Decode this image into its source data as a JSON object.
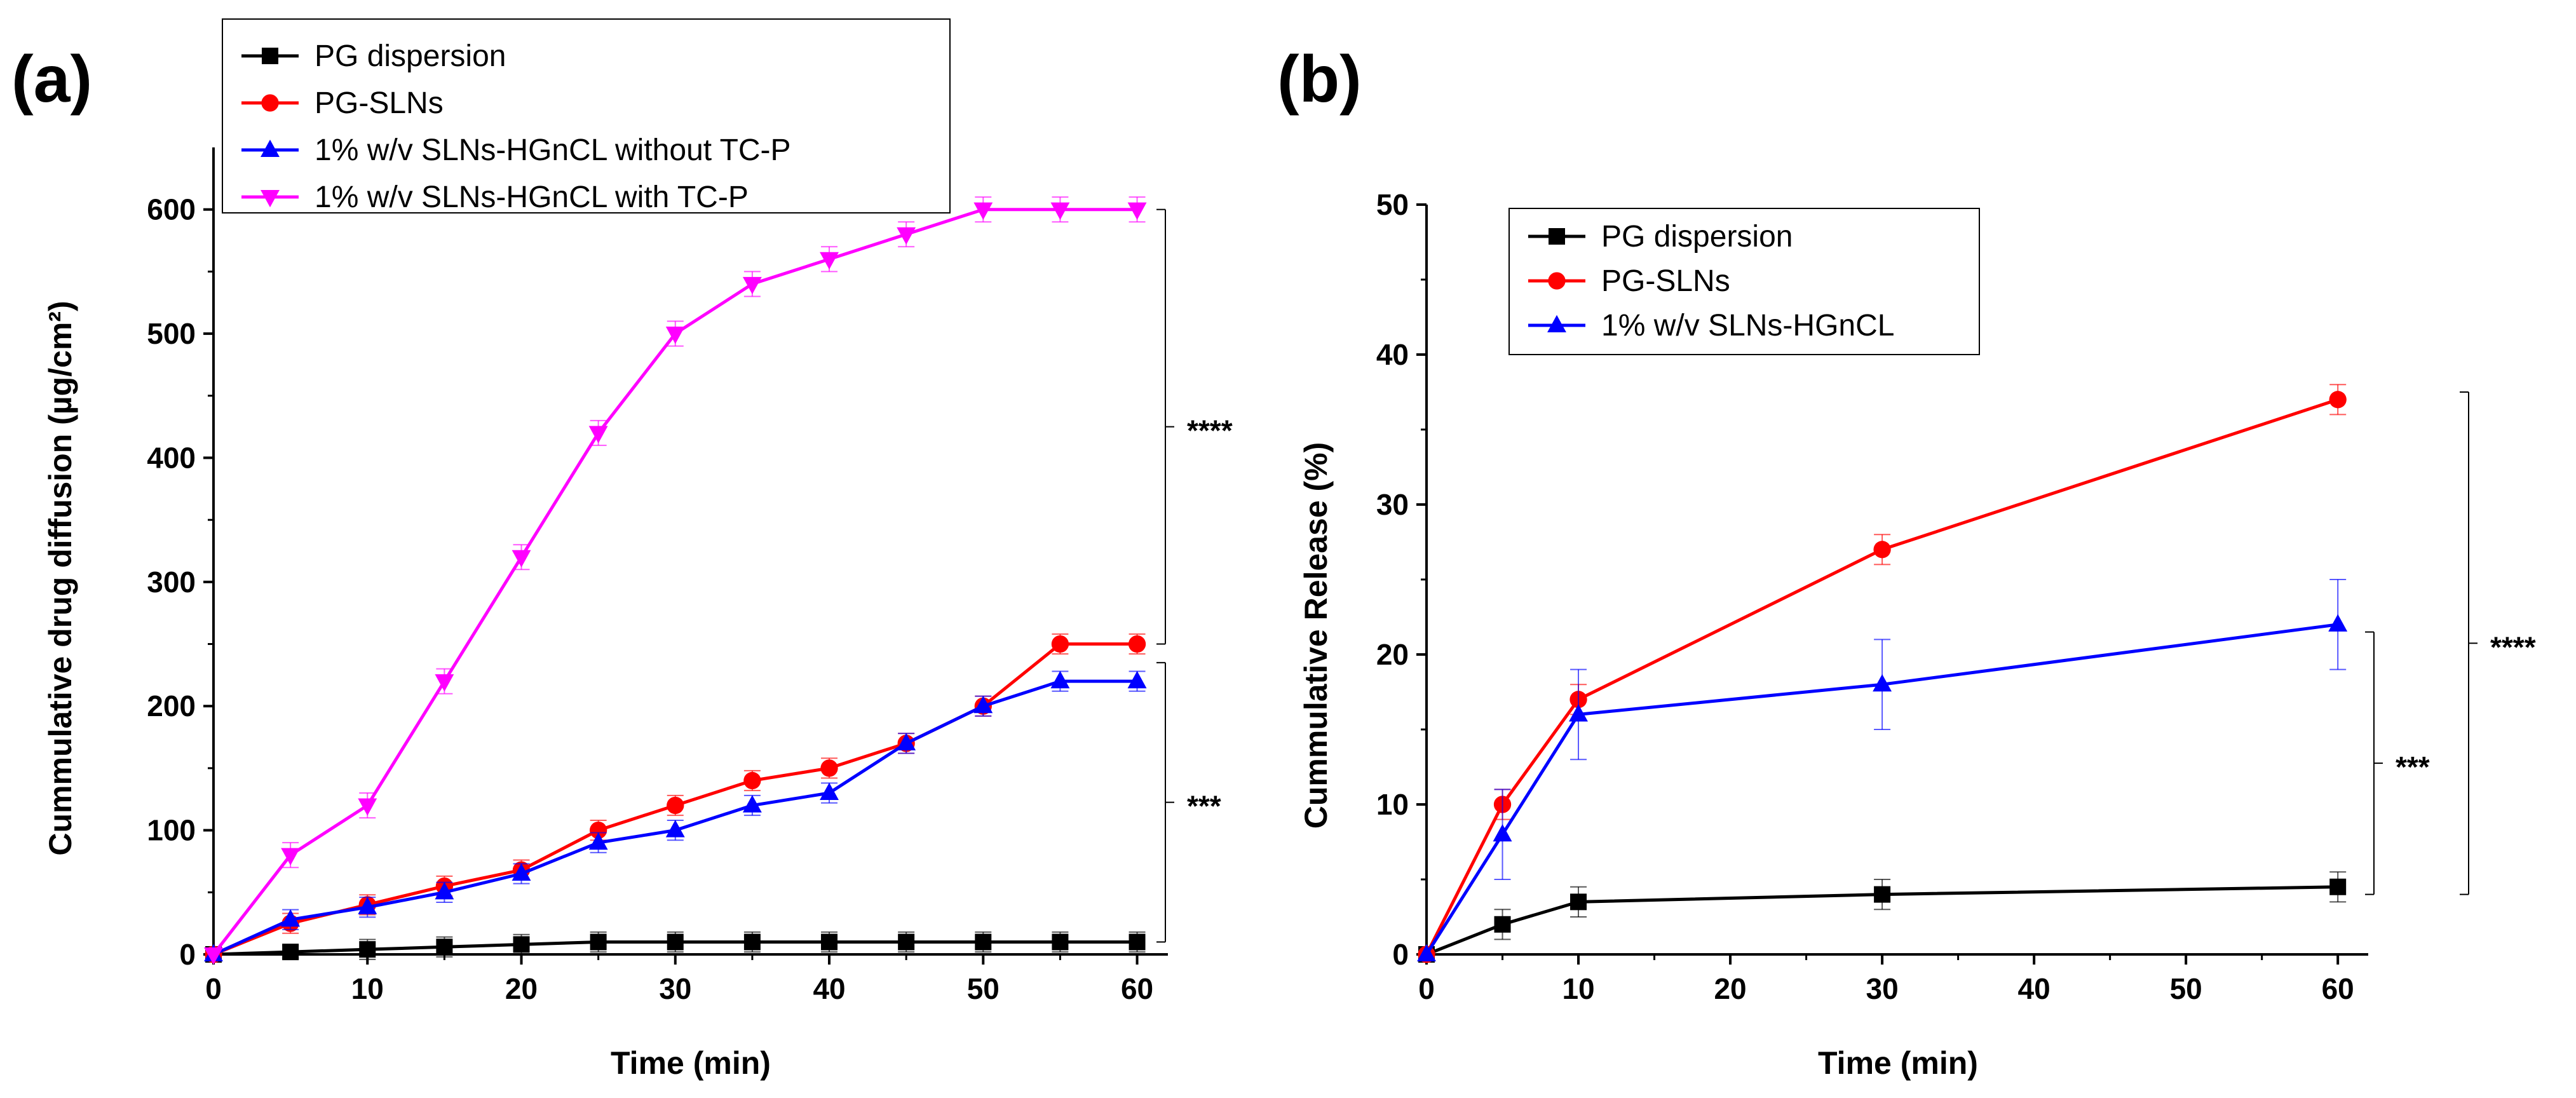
{
  "chart_data": [
    {
      "panel": "(a)",
      "type": "line",
      "xlabel": "Time (min)",
      "ylabel": "Cummulative drug diffusion (µg/cm²)",
      "xlim": [
        0,
        62
      ],
      "ylim": [
        0,
        650
      ],
      "xticks": [
        0,
        10,
        20,
        30,
        40,
        50,
        60
      ],
      "yticks": [
        0,
        100,
        200,
        300,
        400,
        500,
        600
      ],
      "legend_position": "top",
      "series": [
        {
          "name": "PG dispersion",
          "color": "#000000",
          "marker": "square",
          "x": [
            0,
            5,
            10,
            15,
            20,
            25,
            30,
            35,
            40,
            45,
            50,
            55,
            60
          ],
          "y": [
            0,
            2,
            4,
            6,
            8,
            10,
            10,
            10,
            10,
            10,
            10,
            10,
            10
          ],
          "err": [
            0,
            5,
            8,
            8,
            8,
            8,
            8,
            8,
            8,
            8,
            8,
            8,
            8
          ]
        },
        {
          "name": "PG-SLNs",
          "color": "#ff0000",
          "marker": "circle",
          "x": [
            0,
            5,
            10,
            15,
            20,
            25,
            30,
            35,
            40,
            45,
            50,
            55,
            60
          ],
          "y": [
            0,
            25,
            40,
            55,
            68,
            100,
            120,
            140,
            150,
            170,
            200,
            250,
            250
          ],
          "err": [
            0,
            8,
            8,
            8,
            8,
            8,
            8,
            8,
            8,
            8,
            8,
            8,
            8
          ]
        },
        {
          "name": "1% w/v SLNs-HGnCL without TC-P",
          "color": "#0000ff",
          "marker": "triangle-up",
          "x": [
            0,
            5,
            10,
            15,
            20,
            25,
            30,
            35,
            40,
            45,
            50,
            55,
            60
          ],
          "y": [
            0,
            28,
            38,
            50,
            65,
            90,
            100,
            120,
            130,
            170,
            200,
            220,
            220
          ],
          "err": [
            0,
            8,
            8,
            8,
            8,
            8,
            8,
            8,
            8,
            8,
            8,
            8,
            8
          ]
        },
        {
          "name": "1% w/v SLNs-HGnCL with TC-P",
          "color": "#ff00ff",
          "marker": "triangle-down",
          "x": [
            0,
            5,
            10,
            15,
            20,
            25,
            30,
            35,
            40,
            45,
            50,
            55,
            60
          ],
          "y": [
            0,
            80,
            120,
            220,
            320,
            420,
            500,
            540,
            560,
            580,
            600,
            600,
            600
          ],
          "err": [
            0,
            10,
            10,
            10,
            10,
            10,
            10,
            10,
            10,
            10,
            10,
            10,
            10
          ]
        }
      ],
      "significance": [
        {
          "label": "****",
          "from": 250,
          "to": 600
        },
        {
          "label": "***",
          "from": 10,
          "to": 235
        }
      ]
    },
    {
      "panel": "(b)",
      "type": "line",
      "xlabel": "Time (min)",
      "ylabel": "Cummulative Release (%)",
      "xlim": [
        0,
        62
      ],
      "ylim": [
        0,
        50
      ],
      "xticks": [
        0,
        10,
        20,
        30,
        40,
        50,
        60
      ],
      "yticks": [
        0,
        10,
        20,
        30,
        40,
        50
      ],
      "legend_position": "top-left",
      "series": [
        {
          "name": "PG dispersion",
          "color": "#000000",
          "marker": "square",
          "x": [
            0,
            5,
            10,
            30,
            60
          ],
          "y": [
            0,
            2,
            3.5,
            4,
            4.5
          ],
          "err": [
            0,
            1,
            1,
            1,
            1
          ]
        },
        {
          "name": "PG-SLNs",
          "color": "#ff0000",
          "marker": "circle",
          "x": [
            0,
            5,
            10,
            30,
            60
          ],
          "y": [
            0,
            10,
            17,
            27,
            37
          ],
          "err": [
            0,
            1,
            1,
            1,
            1
          ]
        },
        {
          "name": "1% w/v SLNs-HGnCL",
          "color": "#0000ff",
          "marker": "triangle-up",
          "x": [
            0,
            5,
            10,
            30,
            60
          ],
          "y": [
            0,
            8,
            16,
            18,
            22
          ],
          "err": [
            0,
            3,
            3,
            3,
            3
          ]
        }
      ],
      "significance": [
        {
          "label": "****",
          "from": 4,
          "to": 37.5
        },
        {
          "label": "***",
          "from": 4,
          "to": 21.5
        }
      ]
    }
  ]
}
